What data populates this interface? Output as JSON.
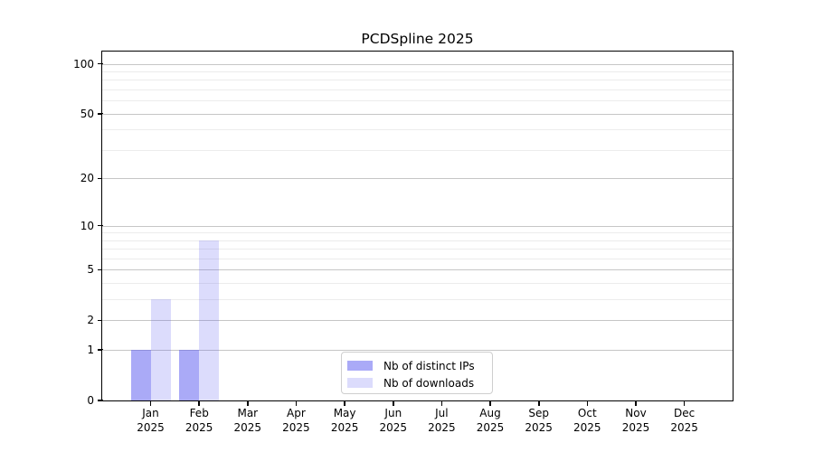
{
  "chart_data": {
    "type": "bar",
    "title": "PCDSpline 2025",
    "year_line": "2025",
    "categories": [
      "Jan",
      "Feb",
      "Mar",
      "Apr",
      "May",
      "Jun",
      "Jul",
      "Aug",
      "Sep",
      "Oct",
      "Nov",
      "Dec"
    ],
    "series": [
      {
        "name": "Nb of distinct IPs",
        "values": [
          1,
          1,
          0,
          0,
          0,
          0,
          0,
          0,
          0,
          0,
          0,
          0
        ],
        "base_color": "#5c5cf0",
        "alpha": 0.52,
        "rendered_color": "#aaaaf2"
      },
      {
        "name": "Nb of downloads",
        "values": [
          3,
          8,
          0,
          0,
          0,
          0,
          0,
          0,
          0,
          0,
          0,
          0
        ],
        "base_color": "#5c5cf0",
        "alpha": 0.21,
        "rendered_color": "#dadaf8"
      }
    ],
    "xlabel": "",
    "ylabel": "",
    "yscale": "log10(1+y)",
    "ylim": [
      0,
      118.5
    ],
    "yticks": [
      0,
      1,
      2,
      5,
      10,
      20,
      50,
      100
    ],
    "ytick_labels": [
      "0",
      "1",
      "2",
      "5",
      "10",
      "20",
      "50",
      "100"
    ],
    "minor_gridlines": [
      3,
      4,
      6,
      7,
      8,
      9,
      30,
      40,
      60,
      70,
      80,
      90
    ],
    "grid": "both-horizontal",
    "legend": {
      "position": "lower-center",
      "entries": [
        "Nb of distinct IPs",
        "Nb of downloads"
      ]
    }
  }
}
